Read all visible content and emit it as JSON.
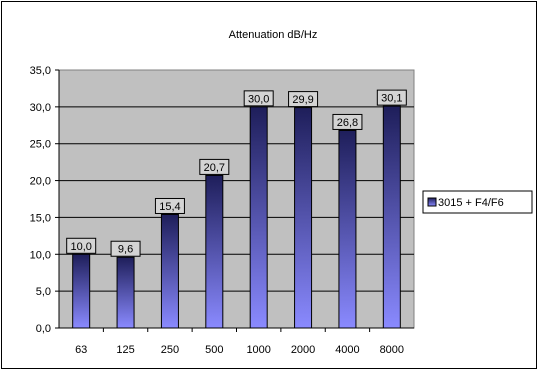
{
  "chart_data": {
    "type": "bar",
    "title": "Attenuation dB/Hz",
    "categories": [
      "63",
      "125",
      "250",
      "500",
      "1000",
      "2000",
      "4000",
      "8000"
    ],
    "series": [
      {
        "name": "3015 + F4/F6",
        "values": [
          10.0,
          9.6,
          15.4,
          20.7,
          30.0,
          29.9,
          26.8,
          30.1
        ]
      }
    ],
    "data_labels": [
      "10,0",
      "9,6",
      "15,4",
      "20,7",
      "30,0",
      "29,9",
      "26,8",
      "30,1"
    ],
    "y_tick_labels": [
      "0,0",
      "5,0",
      "10,0",
      "15,0",
      "20,0",
      "25,0",
      "30,0",
      "35,0"
    ],
    "ylim": [
      0,
      35
    ],
    "y_step": 5,
    "grid": "horizontal",
    "legend_position": "right",
    "colors": {
      "plot_bg": "#c0c0c0",
      "bar_top": "#1e1e5a",
      "bar_bottom": "#8a8aff",
      "label_bg": "#d4d4d4"
    }
  }
}
